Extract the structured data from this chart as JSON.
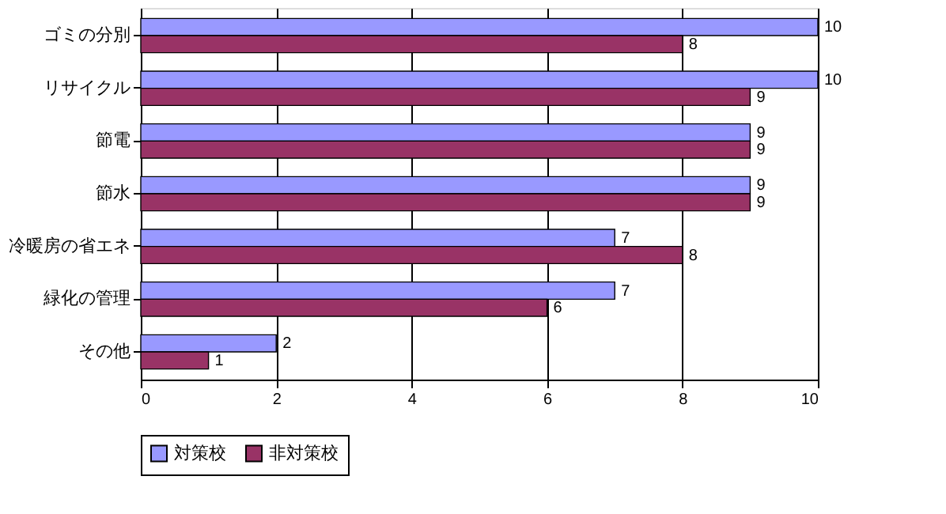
{
  "chart_data": {
    "type": "bar",
    "orientation": "horizontal",
    "categories": [
      "ゴミの分別",
      "リサイクル",
      "節電",
      "節水",
      "冷暖房の省エネ",
      "緑化の管理",
      "その他"
    ],
    "series": [
      {
        "name": "対策校",
        "color": "#9999ff",
        "values": [
          10,
          10,
          9,
          9,
          7,
          7,
          2
        ]
      },
      {
        "name": "非対策校",
        "color": "#993366",
        "values": [
          8,
          9,
          9,
          9,
          8,
          6,
          1
        ]
      }
    ],
    "xlim": [
      0,
      10
    ],
    "xticks": [
      0,
      2,
      4,
      6,
      8,
      10
    ],
    "grid": "x",
    "legend": "bottom",
    "data_labels": true
  }
}
